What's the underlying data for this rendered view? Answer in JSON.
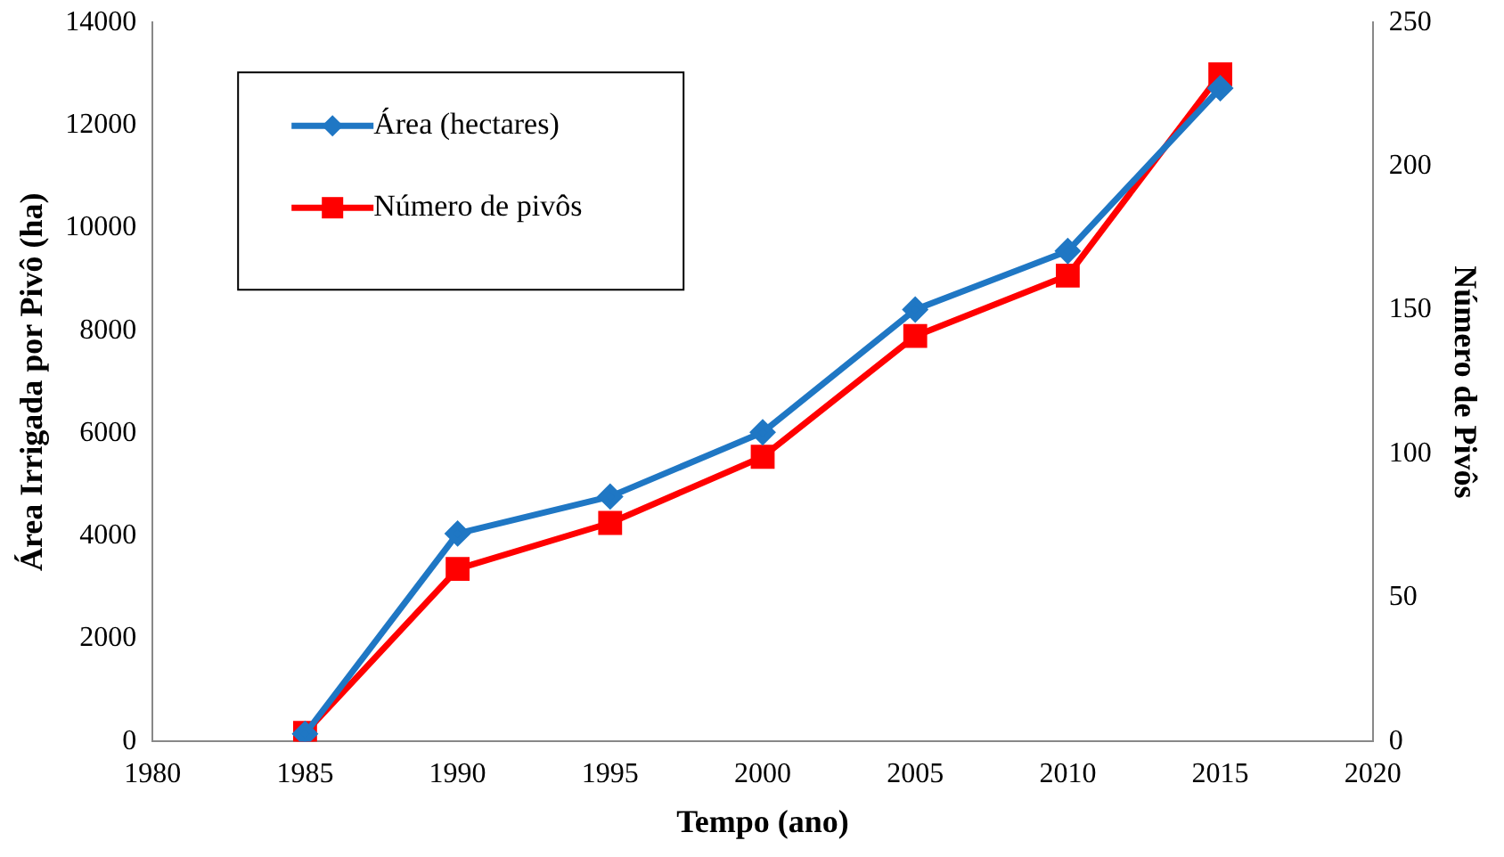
{
  "chart_data": {
    "type": "line",
    "xlabel": "Tempo (ano)",
    "ylabel": "Área Irrigada por Pivô (ha)",
    "y2label": "Número de Pivôs",
    "x": [
      1985,
      1990,
      1995,
      2000,
      2005,
      2010,
      2015
    ],
    "series": [
      {
        "name": "Área (hectares)",
        "color": "#1f77c4",
        "marker": "diamond",
        "values": [
          150,
          4050,
          4770,
          6020,
          8410,
          9550,
          12720
        ]
      },
      {
        "name": "Número de pivôs",
        "color": "#ff0000",
        "marker": "square",
        "axis": "y2",
        "values": [
          3,
          60,
          76,
          99,
          141,
          162,
          232
        ]
      }
    ],
    "xlim": [
      1980,
      2020
    ],
    "xticks": [
      1980,
      1985,
      1990,
      1995,
      2000,
      2005,
      2010,
      2015,
      2020
    ],
    "ylim": [
      0,
      14000
    ],
    "yticks": [
      0,
      2000,
      4000,
      6000,
      8000,
      10000,
      12000,
      14000
    ],
    "y2lim": [
      0,
      250
    ],
    "y2ticks": [
      0,
      50,
      100,
      150,
      200,
      250
    ],
    "grid": false,
    "legend": "top left",
    "line_style": "solid"
  }
}
